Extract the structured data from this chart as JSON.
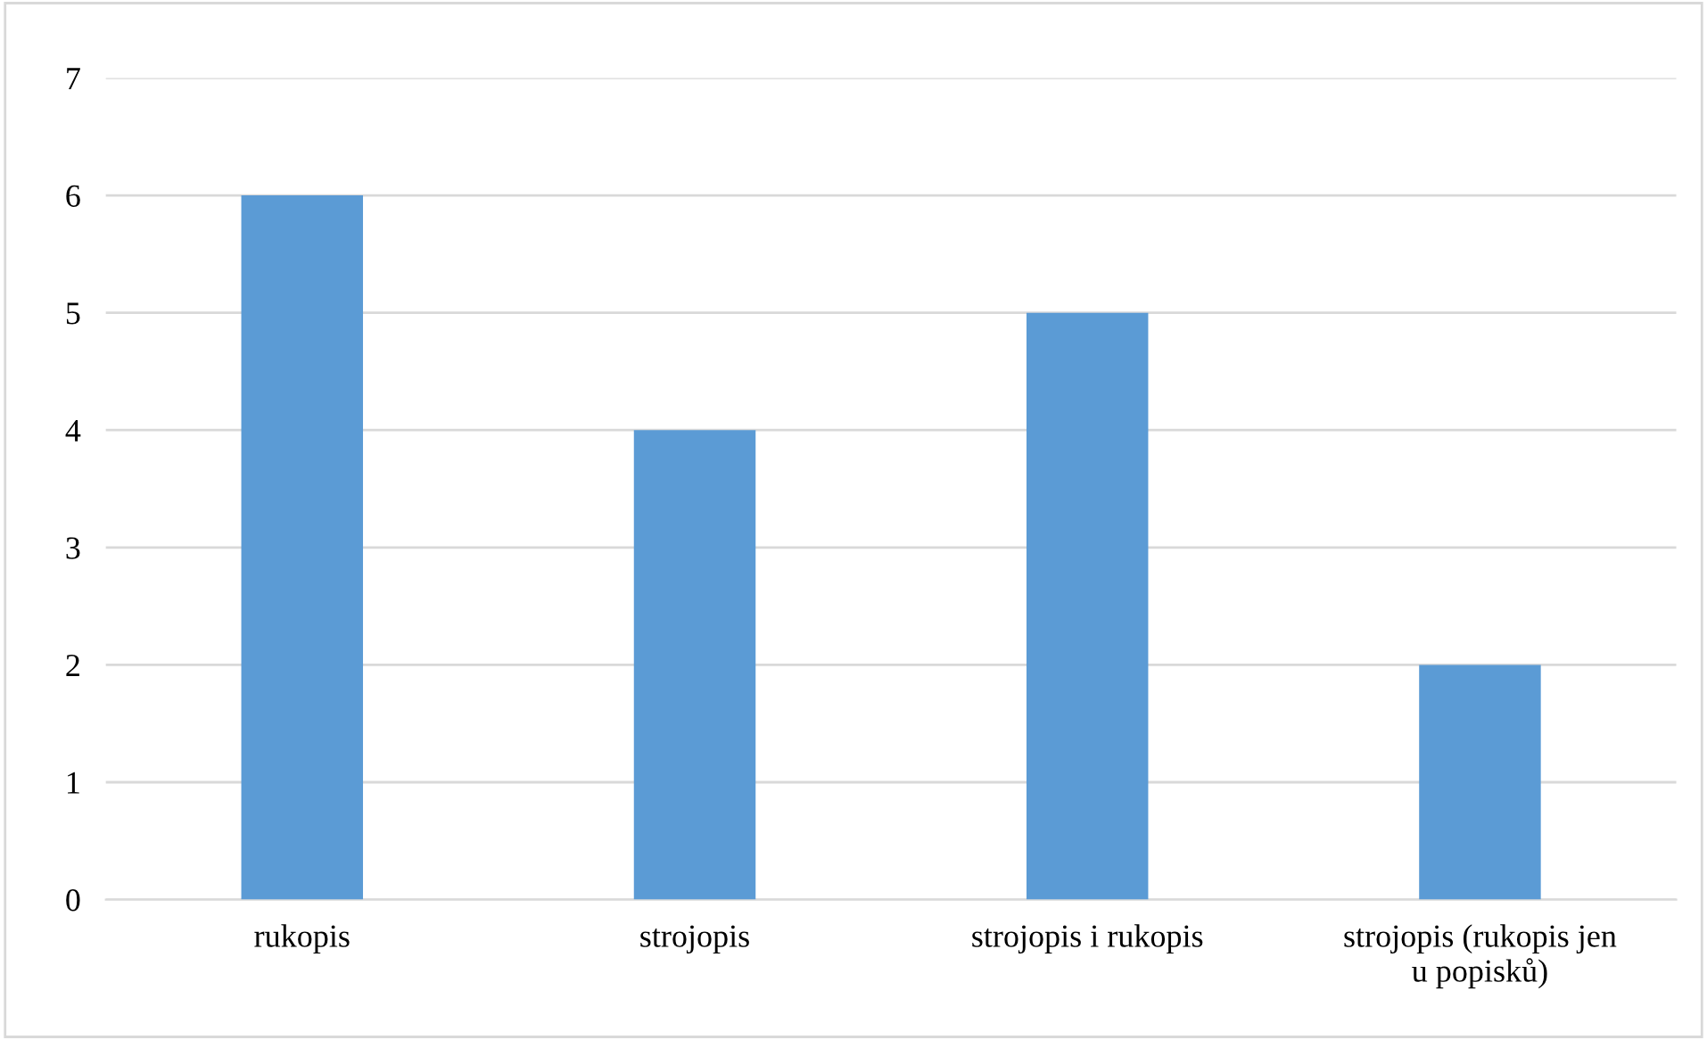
{
  "chart_data": {
    "type": "bar",
    "categories": [
      "rukopis",
      "strojopis",
      "strojopis i rukopis",
      "strojopis (rukopis jen\nu popisků)"
    ],
    "values": [
      6,
      4,
      5,
      2
    ],
    "color": "#5b9bd5",
    "ylim": [
      0,
      7
    ],
    "yticks": [
      0,
      1,
      2,
      3,
      4,
      5,
      6,
      7
    ],
    "grid": "y"
  }
}
